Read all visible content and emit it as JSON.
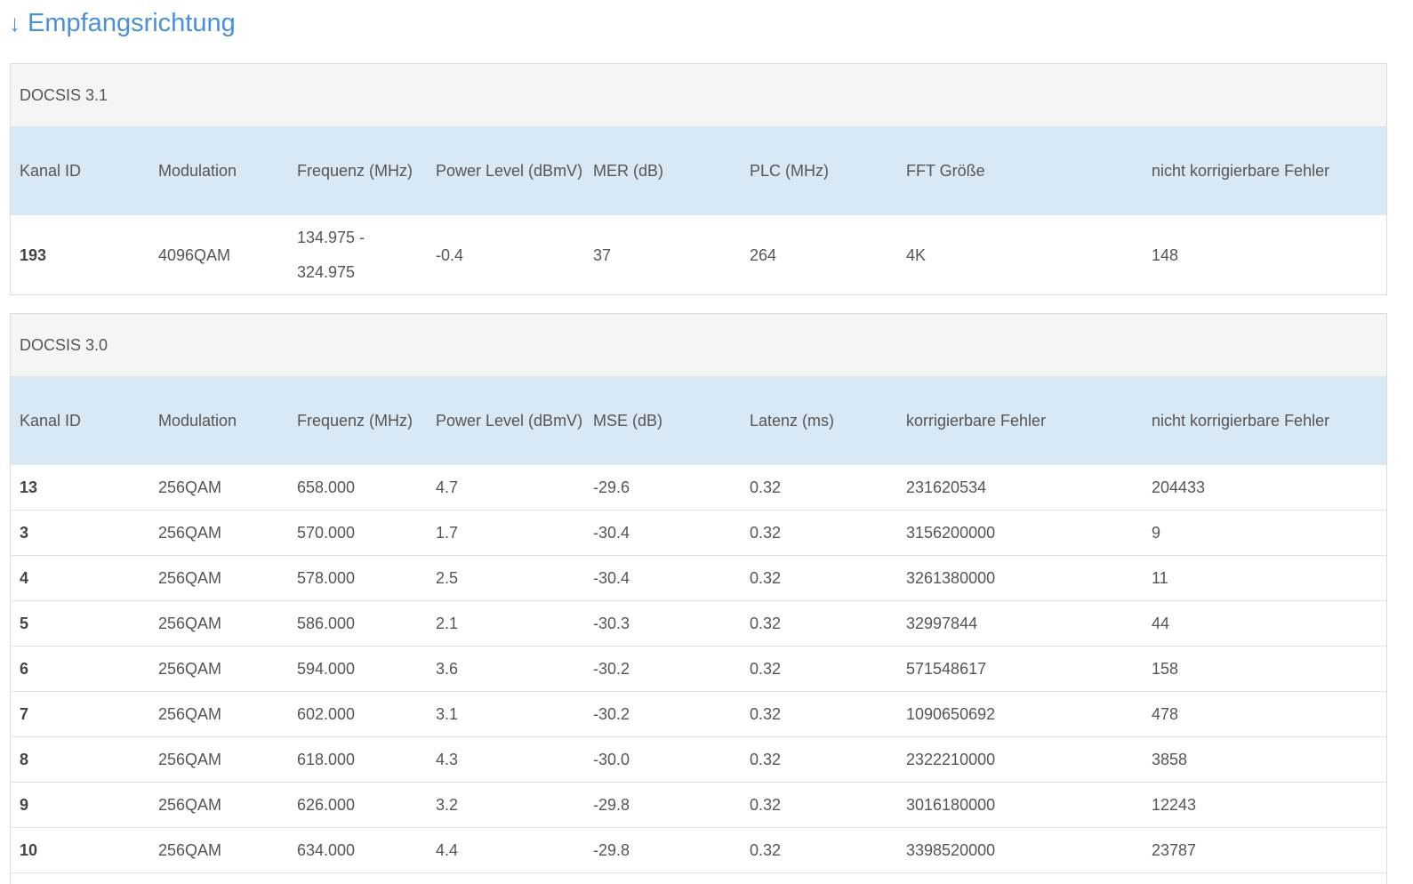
{
  "section": {
    "arrow": "↓",
    "title": "Empfangsrichtung"
  },
  "docsis31": {
    "title": "DOCSIS 3.1",
    "headers": [
      "Kanal ID",
      "Modulation",
      "Frequenz (MHz)",
      "Power Level (dBmV)",
      "MER (dB)",
      "PLC (MHz)",
      "FFT Größe",
      "nicht korrigierbare Fehler"
    ],
    "rows": [
      [
        "193",
        "4096QAM",
        "134.975 - 324.975",
        "-0.4",
        "37",
        "264",
        "4K",
        "148"
      ]
    ]
  },
  "docsis30": {
    "title": "DOCSIS 3.0",
    "headers": [
      "Kanal ID",
      "Modulation",
      "Frequenz (MHz)",
      "Power Level (dBmV)",
      "MSE (dB)",
      "Latenz (ms)",
      "korrigierbare Fehler",
      "nicht korrigierbare Fehler"
    ],
    "rows": [
      [
        "13",
        "256QAM",
        "658.000",
        "4.7",
        "-29.6",
        "0.32",
        "231620534",
        "204433"
      ],
      [
        "3",
        "256QAM",
        "570.000",
        "1.7",
        "-30.4",
        "0.32",
        "3156200000",
        "9"
      ],
      [
        "4",
        "256QAM",
        "578.000",
        "2.5",
        "-30.4",
        "0.32",
        "3261380000",
        "11"
      ],
      [
        "5",
        "256QAM",
        "586.000",
        "2.1",
        "-30.3",
        "0.32",
        "32997844",
        "44"
      ],
      [
        "6",
        "256QAM",
        "594.000",
        "3.6",
        "-30.2",
        "0.32",
        "571548617",
        "158"
      ],
      [
        "7",
        "256QAM",
        "602.000",
        "3.1",
        "-30.2",
        "0.32",
        "1090650692",
        "478"
      ],
      [
        "8",
        "256QAM",
        "618.000",
        "4.3",
        "-30.0",
        "0.32",
        "2322210000",
        "3858"
      ],
      [
        "9",
        "256QAM",
        "626.000",
        "3.2",
        "-29.8",
        "0.32",
        "3016180000",
        "12243"
      ],
      [
        "10",
        "256QAM",
        "634.000",
        "4.4",
        "-29.8",
        "0.32",
        "3398520000",
        "23787"
      ]
    ]
  }
}
